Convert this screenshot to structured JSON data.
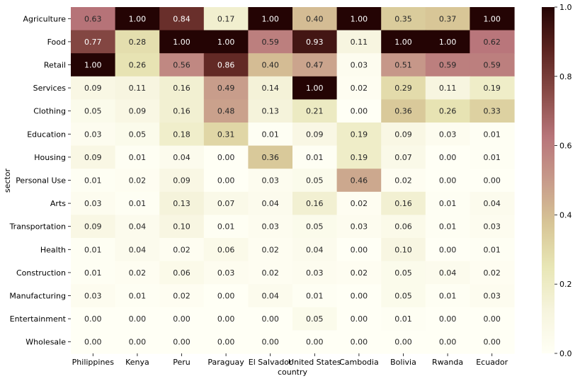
{
  "chart_data": {
    "type": "heatmap",
    "xlabel": "country",
    "ylabel": "sector",
    "x_categories": [
      "Philippines",
      "Kenya",
      "Peru",
      "Paraguay",
      "El Salvador",
      "United States",
      "Cambodia",
      "Bolivia",
      "Rwanda",
      "Ecuador"
    ],
    "y_categories": [
      "Agriculture",
      "Food",
      "Retail",
      "Services",
      "Clothing",
      "Education",
      "Housing",
      "Personal Use",
      "Arts",
      "Transportation",
      "Health",
      "Construction",
      "Manufacturing",
      "Entertainment",
      "Wholesale"
    ],
    "values": [
      [
        0.63,
        1.0,
        0.84,
        0.17,
        1.0,
        0.4,
        1.0,
        0.35,
        0.37,
        1.0
      ],
      [
        0.77,
        0.28,
        1.0,
        1.0,
        0.59,
        0.93,
        0.11,
        1.0,
        1.0,
        0.62
      ],
      [
        1.0,
        0.26,
        0.56,
        0.86,
        0.4,
        0.47,
        0.03,
        0.51,
        0.59,
        0.59
      ],
      [
        0.09,
        0.11,
        0.16,
        0.49,
        0.14,
        1.0,
        0.02,
        0.29,
        0.11,
        0.19
      ],
      [
        0.05,
        0.09,
        0.16,
        0.48,
        0.13,
        0.21,
        0.0,
        0.36,
        0.26,
        0.33
      ],
      [
        0.03,
        0.05,
        0.18,
        0.31,
        0.01,
        0.09,
        0.19,
        0.09,
        0.03,
        0.01
      ],
      [
        0.09,
        0.01,
        0.04,
        0.0,
        0.36,
        0.01,
        0.19,
        0.07,
        0.0,
        0.01
      ],
      [
        0.01,
        0.02,
        0.09,
        0.0,
        0.03,
        0.05,
        0.46,
        0.02,
        0.0,
        0.0
      ],
      [
        0.03,
        0.01,
        0.13,
        0.07,
        0.04,
        0.16,
        0.02,
        0.16,
        0.01,
        0.04
      ],
      [
        0.09,
        0.04,
        0.1,
        0.01,
        0.03,
        0.05,
        0.03,
        0.06,
        0.01,
        0.03
      ],
      [
        0.01,
        0.04,
        0.02,
        0.06,
        0.02,
        0.04,
        0.0,
        0.1,
        0.0,
        0.01
      ],
      [
        0.01,
        0.02,
        0.06,
        0.03,
        0.02,
        0.03,
        0.02,
        0.05,
        0.04,
        0.02
      ],
      [
        0.03,
        0.01,
        0.02,
        0.0,
        0.04,
        0.01,
        0.0,
        0.05,
        0.01,
        0.03
      ],
      [
        0.0,
        0.0,
        0.0,
        0.0,
        0.0,
        0.05,
        0.0,
        0.01,
        0.0,
        0.0
      ],
      [
        0.0,
        0.0,
        0.0,
        0.0,
        0.0,
        0.0,
        0.0,
        0.0,
        0.0,
        0.0
      ]
    ],
    "value_range": [
      0.0,
      1.0
    ],
    "colorbar_ticks": [
      "0.0",
      "0.2",
      "0.4",
      "0.6",
      "0.8",
      "1.0"
    ],
    "colormap": [
      "#fffff5",
      "#f6f4dd",
      "#e8e6b5",
      "#d7c596",
      "#c79a8a",
      "#b8757a",
      "#8a4c48",
      "#5c2420",
      "#240404"
    ],
    "annotations": true,
    "grid": false,
    "legend": "colorbar-right"
  }
}
